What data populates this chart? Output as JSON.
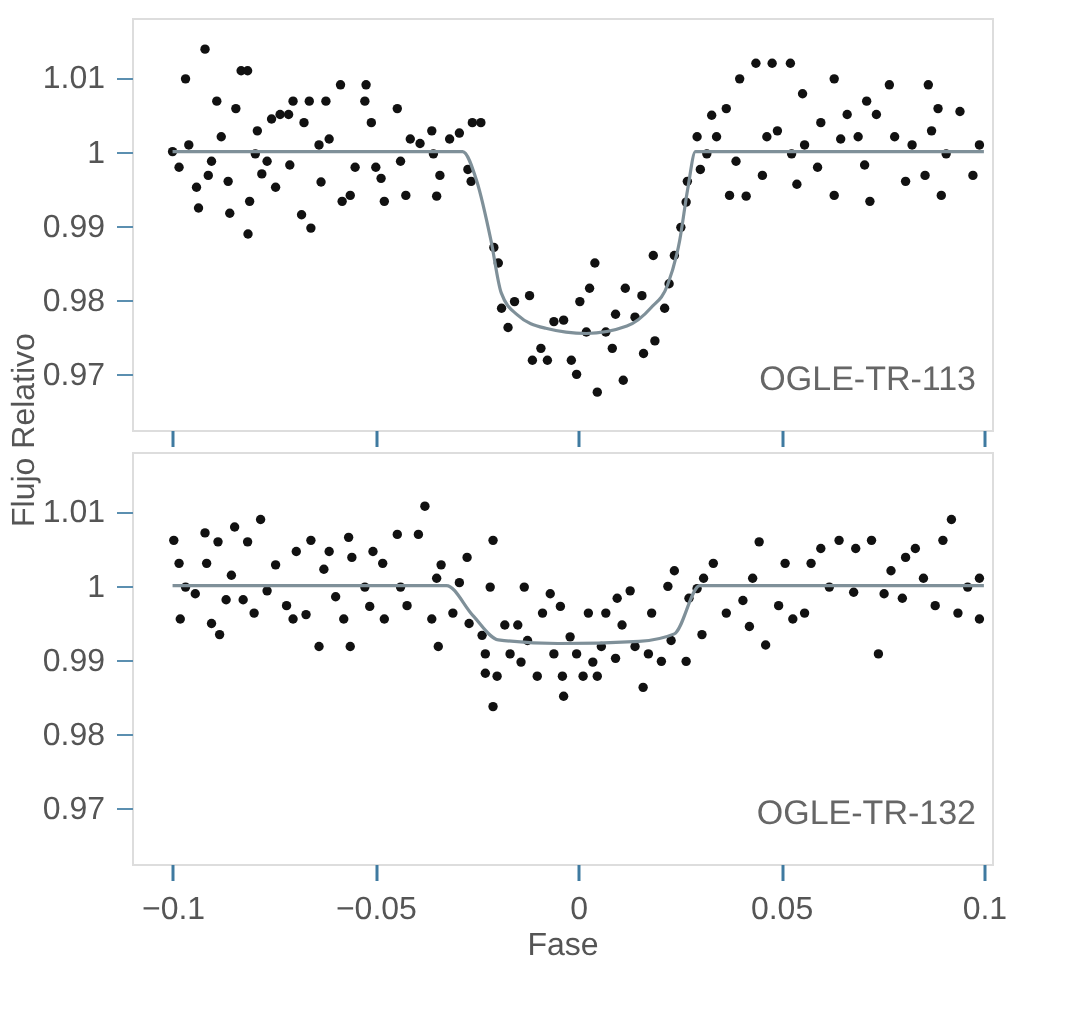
{
  "chart_data": [
    {
      "type": "scatter",
      "ylabel": "Flujo Relativo",
      "annotations": [
        "OGLE-TR-113"
      ],
      "xlim": [
        -0.11,
        0.102
      ],
      "ylim": [
        0.9625,
        1.018
      ],
      "xticks": [
        -0.1,
        -0.05,
        0,
        0.05,
        0.1
      ],
      "yticks": [
        0.97,
        0.98,
        0.99,
        1,
        1.01
      ],
      "tick_labels": "y",
      "grid": false,
      "series": [
        {
          "marker": "circle",
          "color": "#111111",
          "x": [
            -0.1,
            -0.0984,
            -0.0968,
            -0.096,
            -0.0941,
            -0.0936,
            -0.092,
            -0.0912,
            -0.0904,
            -0.0891,
            -0.088,
            -0.0863,
            -0.0859,
            -0.0844,
            -0.0831,
            -0.0815,
            -0.0814,
            -0.081,
            -0.0796,
            -0.0791,
            -0.078,
            -0.0767,
            -0.0756,
            -0.0746,
            -0.0735,
            -0.0714,
            -0.0711,
            -0.0703,
            -0.0682,
            -0.0676,
            -0.0663,
            -0.0659,
            -0.0639,
            -0.0634,
            -0.0622,
            -0.0614,
            -0.0586,
            -0.0582,
            -0.0562,
            -0.055,
            -0.0523,
            -0.0526,
            -0.051,
            -0.0499,
            -0.0486,
            -0.0478,
            -0.0446,
            -0.0438,
            -0.0425,
            -0.0414,
            -0.039,
            -0.0361,
            -0.0357,
            -0.0349,
            -0.0341,
            -0.0317,
            -0.0293,
            -0.0261,
            -0.024,
            -0.0272,
            -0.0264,
            -0.0208,
            -0.0197,
            -0.0189,
            -0.0173,
            -0.0157,
            -0.012,
            -0.0113,
            -0.0092,
            -0.0076,
            -0.006,
            -0.0036,
            -0.0017,
            -0.0004,
            0.0004,
            0.002,
            0.0028,
            0.0041,
            0.0047,
            0.0068,
            0.0084,
            0.0092,
            0.0111,
            0.0116,
            0.014,
            0.0157,
            0.0161,
            0.0185,
            0.0189,
            0.0213,
            0.0224,
            0.0237,
            0.0253,
            0.0266,
            0.0269,
            0.0293,
            0.0301,
            0.0317,
            0.0329,
            0.0341,
            0.0365,
            0.0373,
            0.0389,
            0.0398,
            0.0414,
            0.0438,
            0.0454,
            0.0465,
            0.0478,
            0.0491,
            0.0523,
            0.0526,
            0.0539,
            0.0553,
            0.0558,
            0.059,
            0.0598,
            0.0631,
            0.0631,
            0.0647,
            0.0663,
            0.069,
            0.0706,
            0.0711,
            0.0719,
            0.0735,
            0.0767,
            0.078,
            0.0807,
            0.0823,
            0.0855,
            0.0863,
            0.0871,
            0.0887,
            0.0895,
            0.0907,
            0.0941,
            0.0973,
            0.0989
          ],
          "values": [
            1.0,
            0.9979,
            1.0098,
            1.0009,
            0.9952,
            0.9924,
            1.0138,
            0.9968,
            0.9987,
            1.0068,
            1.002,
            0.996,
            0.9917,
            1.0058,
            1.0109,
            1.0109,
            0.9889,
            0.9933,
            0.9997,
            1.0028,
            0.997,
            0.9987,
            1.0044,
            0.9952,
            1.005,
            1.005,
            0.9982,
            1.0068,
            0.9915,
            1.0039,
            1.0068,
            0.9897,
            1.0009,
            0.9959,
            1.0068,
            1.0017,
            1.009,
            0.9933,
            0.9941,
            0.9979,
            1.009,
            1.0068,
            1.0039,
            0.9979,
            0.9964,
            0.9933,
            1.0058,
            0.9987,
            0.9941,
            1.0017,
            1.0011,
            1.0028,
            0.9997,
            0.994,
            0.9968,
            1.0017,
            1.0025,
            1.0039,
            1.0039,
            0.9976,
            0.996,
            0.9871,
            0.985,
            0.9789,
            0.9763,
            0.9798,
            0.9806,
            0.9719,
            0.9735,
            0.9719,
            0.9771,
            0.9773,
            0.9719,
            0.97,
            0.9798,
            0.9757,
            0.9816,
            0.985,
            0.9676,
            0.9757,
            0.9735,
            0.9781,
            0.9692,
            0.9816,
            0.9777,
            0.9806,
            0.9728,
            0.986,
            0.9745,
            0.9789,
            0.9822,
            0.986,
            0.9898,
            0.9932,
            0.996,
            1.002,
            0.9976,
            0.9997,
            1.0049,
            1.002,
            1.0058,
            0.9941,
            0.9987,
            1.0098,
            0.994,
            1.0119,
            0.9968,
            1.002,
            1.0119,
            1.0028,
            1.0119,
            0.9997,
            0.9956,
            1.0078,
            1.0009,
            0.9979,
            1.0039,
            1.0098,
            0.9941,
            1.0017,
            1.005,
            1.002,
            0.9982,
            1.0068,
            0.9933,
            1.005,
            1.009,
            1.002,
            0.996,
            1.0009,
            0.9968,
            1.009,
            1.0028,
            1.0058,
            0.9941,
            0.9997,
            1.0054,
            0.9968,
            1.0009
          ]
        },
        {
          "type": "line",
          "color": "#7f9099",
          "x": [
            -0.1,
            -0.0285,
            -0.025,
            -0.0215,
            -0.019,
            -0.015,
            -0.008,
            0.002,
            0.012,
            0.018,
            0.022,
            0.025,
            0.027,
            0.0289,
            0.1
          ],
          "values": [
            1,
            1,
            0.996,
            0.988,
            0.981,
            0.978,
            0.9762,
            0.9755,
            0.9765,
            0.979,
            0.982,
            0.988,
            0.995,
            1,
            1
          ]
        }
      ]
    },
    {
      "type": "scatter",
      "xlabel": "Fase",
      "annotations": [
        "OGLE-TR-132"
      ],
      "xlim": [
        -0.11,
        0.102
      ],
      "ylim": [
        0.9625,
        1.018
      ],
      "xticks": [
        {
          "value": -0.1,
          "label": "−0.1"
        },
        {
          "value": -0.05,
          "label": "−0.05"
        },
        0,
        0.05,
        0.1
      ],
      "yticks": [
        0.97,
        0.98,
        0.99,
        1,
        1.01
      ],
      "grid": false,
      "series": [
        {
          "marker": "circle",
          "color": "#111111",
          "x": [
            -0.0997,
            -0.0984,
            -0.0981,
            -0.0968,
            -0.0944,
            -0.092,
            -0.0916,
            -0.0904,
            -0.0888,
            -0.0884,
            -0.0868,
            -0.0855,
            -0.0847,
            -0.0826,
            -0.0815,
            -0.0799,
            -0.0783,
            -0.0767,
            -0.0746,
            -0.0719,
            -0.0703,
            -0.0695,
            -0.0671,
            -0.0659,
            -0.0639,
            -0.0627,
            -0.0614,
            -0.0598,
            -0.0578,
            -0.0566,
            -0.0562,
            -0.0558,
            -0.0526,
            -0.0514,
            -0.0506,
            -0.0482,
            -0.0478,
            -0.0446,
            -0.0438,
            -0.0422,
            -0.0394,
            -0.0378,
            -0.0361,
            -0.0349,
            -0.0345,
            -0.0338,
            -0.0309,
            -0.0293,
            -0.0274,
            -0.0269,
            -0.0237,
            -0.0229,
            -0.0229,
            -0.0217,
            -0.021,
            -0.021,
            -0.02,
            -0.0181,
            -0.0168,
            -0.0149,
            -0.0141,
            -0.0133,
            -0.0125,
            -0.0101,
            -0.0088,
            -0.0069,
            -0.006,
            -0.0044,
            -0.0039,
            -0.0036,
            -0.002,
            -0.0004,
            0.0012,
            0.0025,
            0.0036,
            0.0047,
            0.0057,
            0.0068,
            0.0092,
            0.0096,
            0.0108,
            0.0128,
            0.014,
            0.016,
            0.0173,
            0.0181,
            0.0205,
            0.0221,
            0.0229,
            0.0237,
            0.0266,
            0.0273,
            0.0293,
            0.0305,
            0.0309,
            0.0333,
            0.0365,
            0.0406,
            0.0422,
            0.043,
            0.0446,
            0.0462,
            0.0494,
            0.051,
            0.0529,
            0.0558,
            0.0574,
            0.0598,
            0.0619,
            0.0643,
            0.0679,
            0.0684,
            0.0723,
            0.074,
            0.0754,
            0.0771,
            0.0799,
            0.0807,
            0.0831,
            0.0851,
            0.088,
            0.0899,
            0.092,
            0.0936,
            0.096,
            0.0989,
            0.0989
          ],
          "values": [
            1.0061,
            1.003,
            0.9955,
            0.9998,
            0.9989,
            1.0071,
            1.003,
            0.9949,
            1.0059,
            0.9934,
            0.9981,
            1.0014,
            1.0079,
            0.9981,
            1.0059,
            0.9963,
            1.0089,
            0.9993,
            1.0028,
            0.9973,
            0.9955,
            1.0046,
            0.9961,
            1.0061,
            0.9918,
            1.0022,
            1.0046,
            0.9985,
            0.9955,
            1.0065,
            0.9918,
            1.0038,
            0.9998,
            0.9972,
            1.0046,
            1.003,
            0.9955,
            1.0069,
            0.9998,
            0.9973,
            1.0069,
            1.0107,
            0.9955,
            1.001,
            0.9918,
            1.0028,
            0.9963,
            1.0004,
            1.0038,
            0.9949,
            0.9933,
            0.9908,
            0.9882,
            0.9998,
            1.0061,
            0.9837,
            0.9878,
            0.9947,
            0.9908,
            0.9947,
            0.9897,
            0.9998,
            0.9926,
            0.9878,
            0.9963,
            0.9989,
            0.9908,
            0.9972,
            0.9878,
            0.9851,
            0.9931,
            0.9908,
            0.9878,
            0.9963,
            0.9897,
            0.9878,
            0.9918,
            0.9963,
            0.9902,
            0.9983,
            0.9947,
            0.9993,
            0.9918,
            0.9863,
            0.9908,
            0.9963,
            0.9898,
            0.9999,
            0.9926,
            1.002,
            0.9898,
            0.9983,
            0.9996,
            0.9934,
            1.001,
            1.003,
            0.9963,
            0.998,
            0.9945,
            1.001,
            1.0059,
            0.992,
            0.9973,
            1.003,
            0.9955,
            0.9963,
            1.003,
            1.005,
            0.9998,
            1.0061,
            0.9991,
            1.005,
            1.0061,
            0.9908,
            0.9989,
            1.002,
            0.9983,
            1.0038,
            1.005,
            1.001,
            0.9973,
            1.0061,
            1.0089,
            0.9963,
            0.9998,
            0.9955,
            1.001
          ]
        },
        {
          "type": "line",
          "color": "#7f9099",
          "x": [
            -0.1,
            -0.0325,
            -0.026,
            -0.0197,
            -0.005,
            0.015,
            0.0237,
            0.03,
            0.1
          ],
          "values": [
            1,
            1,
            0.996,
            0.9927,
            0.9922,
            0.9925,
            0.9935,
            1,
            1
          ]
        }
      ]
    }
  ]
}
